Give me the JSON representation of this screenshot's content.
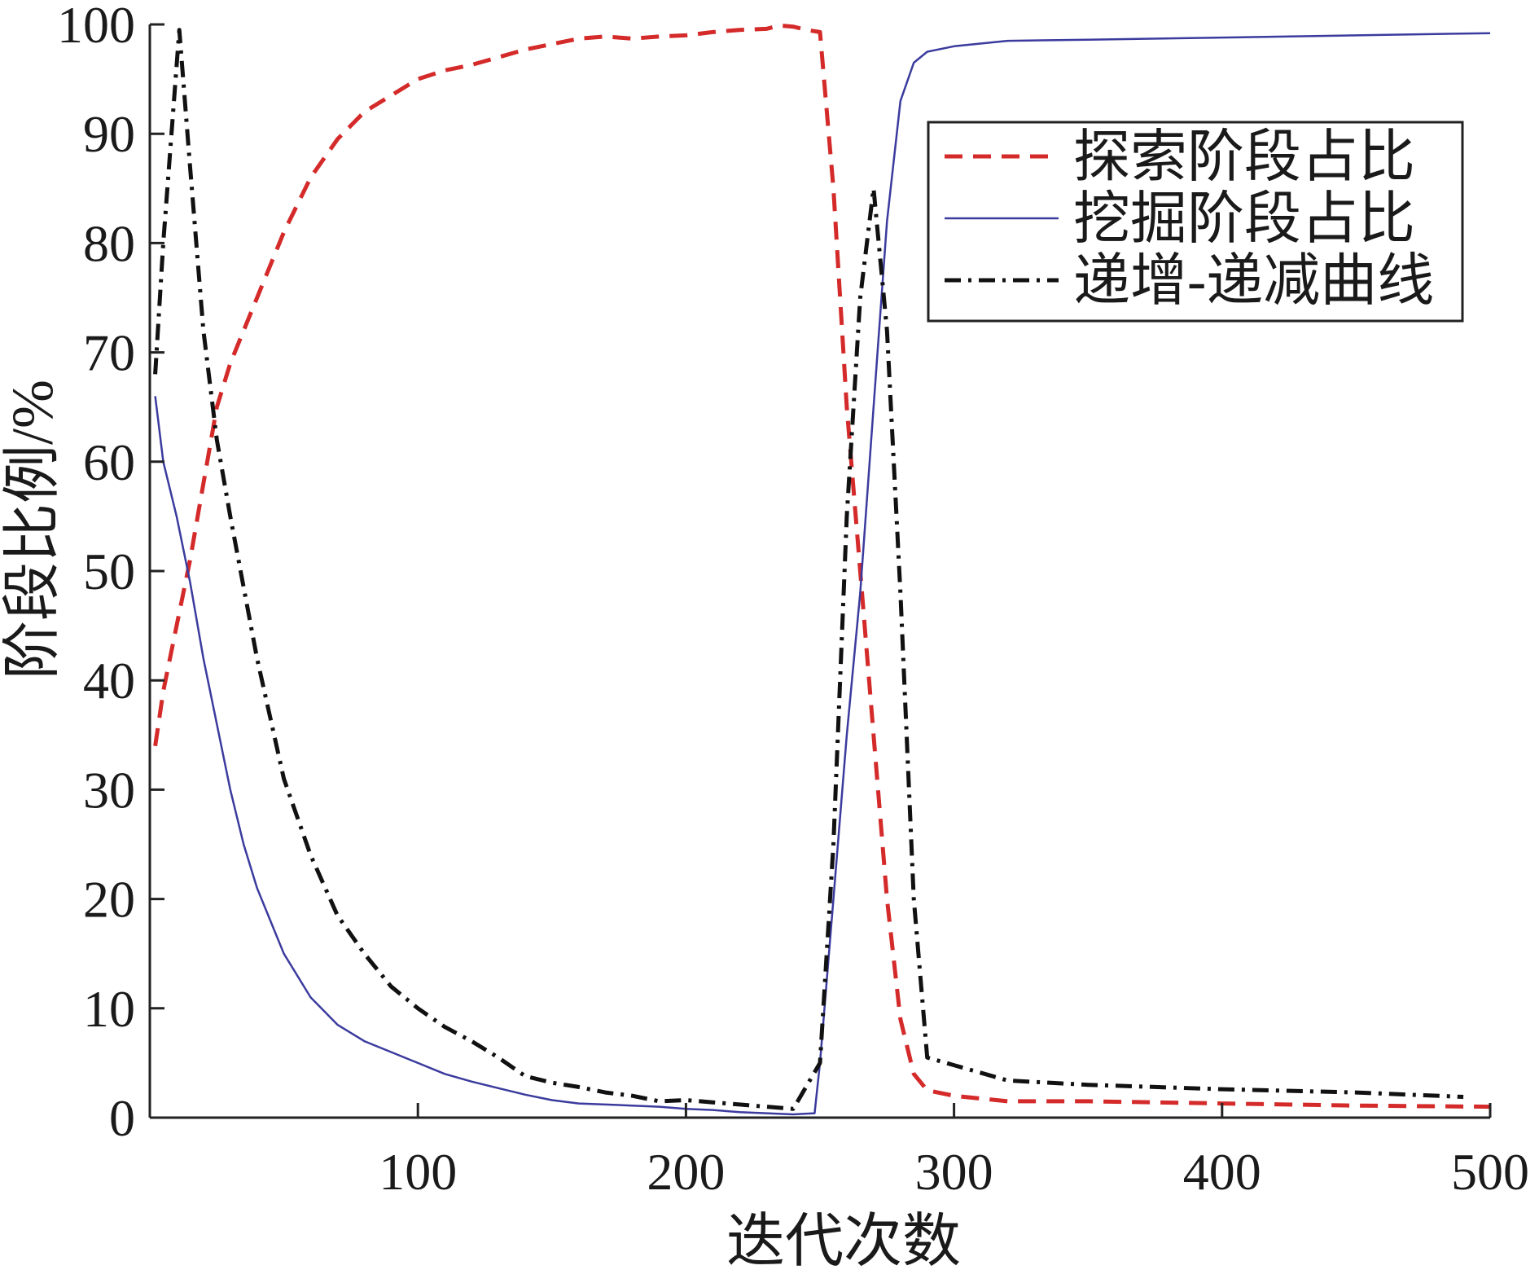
{
  "chart_data": {
    "type": "line",
    "xlabel": "迭代次数",
    "ylabel": "阶段比例/%",
    "xlim": [
      0,
      500
    ],
    "ylim": [
      0,
      100
    ],
    "xticks": [
      100,
      200,
      300,
      400,
      500
    ],
    "yticks": [
      0,
      10,
      20,
      30,
      40,
      50,
      60,
      70,
      80,
      90,
      100
    ],
    "grid": false,
    "legend_position": "top-right",
    "series": [
      {
        "name": "探索阶段占比",
        "color": "#d42a2a",
        "style": "dashed",
        "x": [
          2,
          5,
          10,
          15,
          20,
          25,
          30,
          35,
          40,
          50,
          60,
          70,
          80,
          90,
          100,
          110,
          120,
          130,
          140,
          150,
          160,
          170,
          180,
          190,
          200,
          210,
          220,
          230,
          235,
          240,
          245,
          250,
          255,
          260,
          265,
          270,
          275,
          280,
          285,
          290,
          300,
          320,
          350,
          400,
          450,
          500
        ],
        "y": [
          34,
          39,
          45,
          51,
          58,
          65,
          69,
          72,
          75,
          81,
          86,
          89.5,
          92,
          93.5,
          95,
          95.8,
          96.3,
          97,
          97.7,
          98.2,
          98.7,
          98.9,
          98.7,
          98.9,
          99,
          99.3,
          99.5,
          99.6,
          99.9,
          99.8,
          99.5,
          99.3,
          85,
          65,
          50,
          35,
          20,
          9,
          4,
          2.5,
          2,
          1.5,
          1.5,
          1.3,
          1.1,
          1.0
        ]
      },
      {
        "name": "挖掘阶段占比",
        "color": "#3b3b9e",
        "style": "solid",
        "x": [
          2,
          5,
          10,
          15,
          20,
          25,
          30,
          35,
          40,
          45,
          50,
          60,
          70,
          80,
          90,
          100,
          110,
          120,
          130,
          140,
          150,
          160,
          170,
          180,
          190,
          200,
          210,
          220,
          230,
          240,
          248,
          250,
          255,
          260,
          265,
          270,
          275,
          280,
          285,
          290,
          300,
          320,
          350,
          400,
          450,
          500
        ],
        "y": [
          66,
          60,
          55,
          49,
          42,
          36,
          30,
          25,
          21,
          18,
          15,
          11,
          8.5,
          7,
          6,
          5,
          4,
          3.3,
          2.7,
          2.1,
          1.6,
          1.3,
          1.2,
          1.1,
          1.0,
          0.8,
          0.7,
          0.5,
          0.4,
          0.3,
          0.4,
          5,
          20,
          35,
          48,
          65,
          82,
          93,
          96.5,
          97.5,
          98,
          98.5,
          98.6,
          98.8,
          99,
          99.2
        ]
      },
      {
        "name": "递增-递减曲线",
        "color": "#111111",
        "style": "dashdot",
        "x": [
          2,
          5,
          11,
          15,
          20,
          25,
          30,
          40,
          50,
          60,
          70,
          80,
          90,
          100,
          110,
          120,
          130,
          140,
          150,
          160,
          170,
          180,
          190,
          200,
          210,
          220,
          230,
          240,
          250,
          255,
          260,
          265,
          270,
          275,
          280,
          285,
          290,
          300,
          320,
          350,
          400,
          450,
          490
        ],
        "y": [
          68,
          80,
          99.5,
          87,
          72,
          62,
          55,
          42,
          31,
          24,
          18.5,
          15,
          12,
          10,
          8.3,
          7,
          5.5,
          3.8,
          3.2,
          2.8,
          2.3,
          2.0,
          1.5,
          1.6,
          1.4,
          1.2,
          1.0,
          0.8,
          5,
          25,
          55,
          75,
          85,
          72,
          48,
          20,
          5.5,
          4.8,
          3.4,
          3.0,
          2.6,
          2.3,
          1.9
        ]
      }
    ]
  }
}
